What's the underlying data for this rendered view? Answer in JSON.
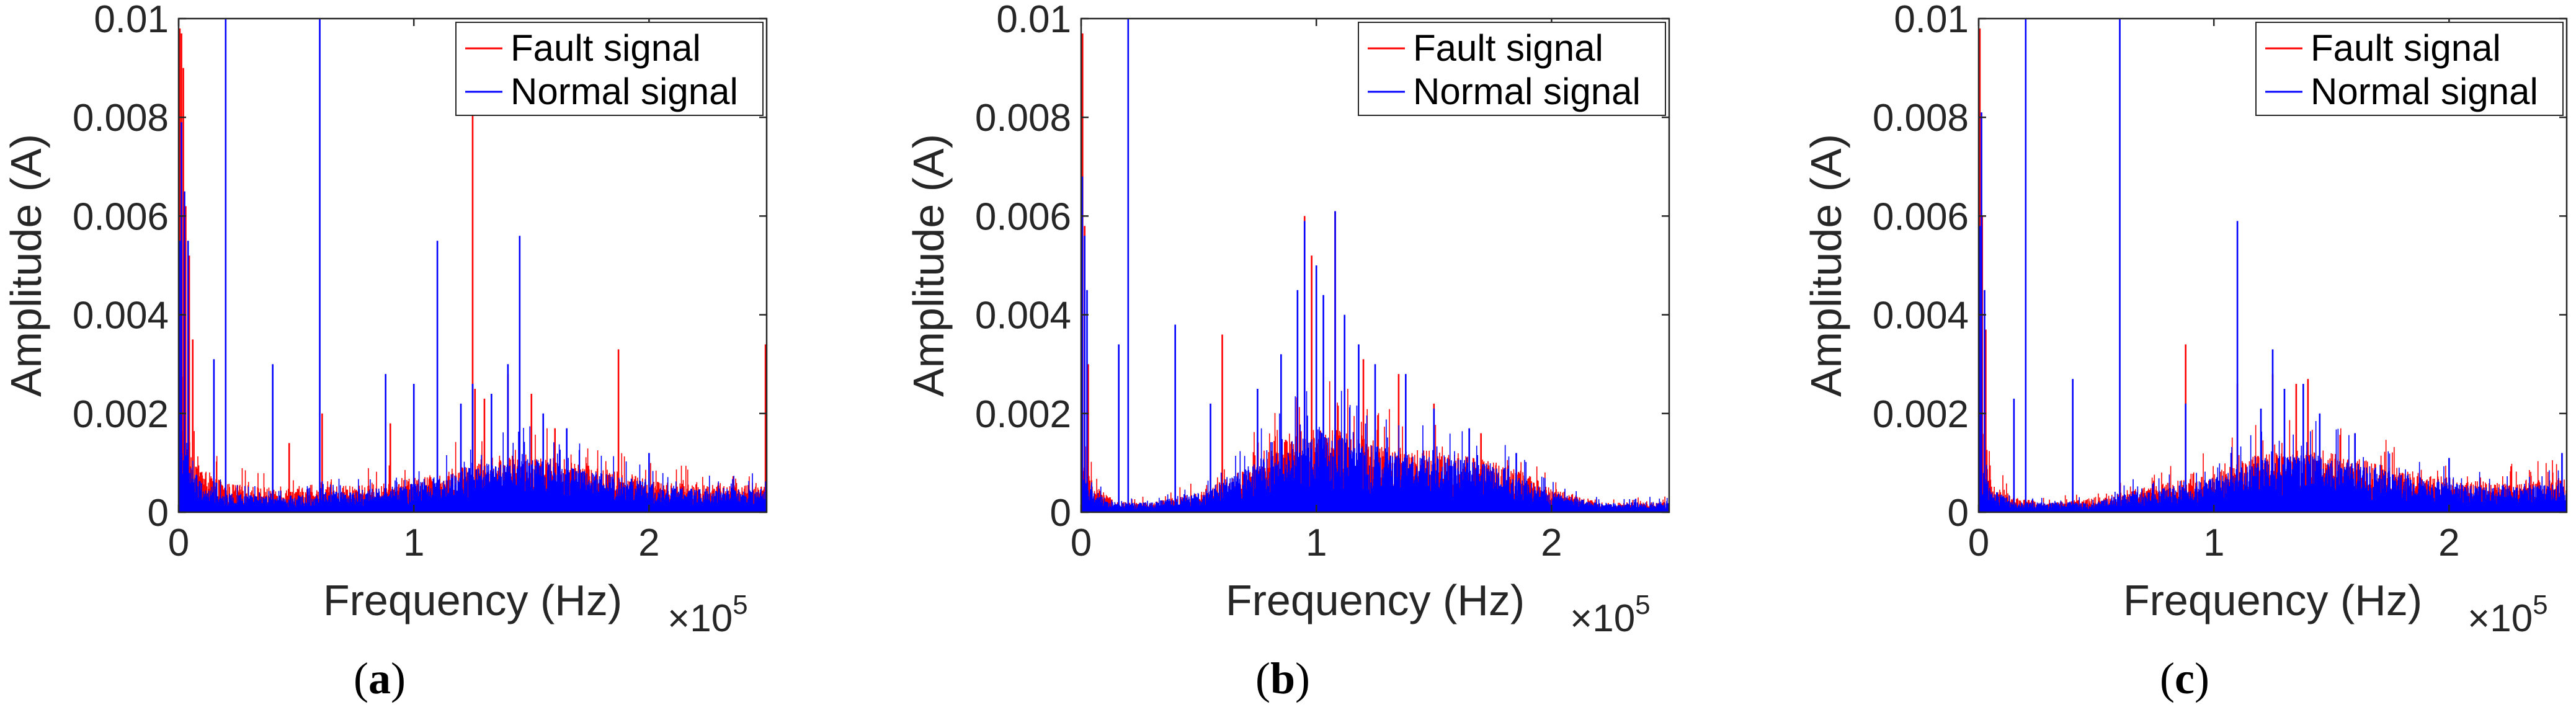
{
  "chart_data": [
    {
      "id": "a",
      "type": "line",
      "caption_letter": "a",
      "xlabel": "Frequency (Hz)",
      "ylabel": "Amplitude (A)",
      "x_exponent": "5",
      "x_tick_labels": [
        "0",
        "1",
        "2"
      ],
      "x_ticks": [
        0,
        100000,
        200000
      ],
      "y_tick_labels": [
        "0",
        "0.002",
        "0.004",
        "0.006",
        "0.008",
        "0.01"
      ],
      "y_ticks": [
        0,
        0.002,
        0.004,
        0.006,
        0.008,
        0.01
      ],
      "xlim": [
        0,
        250000
      ],
      "ylim": [
        0,
        0.01
      ],
      "grid": false,
      "legend_position": "top-right",
      "series": [
        {
          "name": "Fault signal",
          "color": "#ff0000",
          "noise_envelope": [
            [
              0,
              0.0022
            ],
            [
              3000,
              0.0018
            ],
            [
              10000,
              0.0009
            ],
            [
              20000,
              0.0006
            ],
            [
              40000,
              0.0005
            ],
            [
              60000,
              0.0005
            ],
            [
              90000,
              0.0006
            ],
            [
              110000,
              0.0008
            ],
            [
              130000,
              0.0011
            ],
            [
              150000,
              0.0012
            ],
            [
              170000,
              0.001
            ],
            [
              190000,
              0.0008
            ],
            [
              210000,
              0.0006
            ],
            [
              230000,
              0.0006
            ],
            [
              250000,
              0.0006
            ]
          ],
          "peaks": [
            [
              500,
              0.0098
            ],
            [
              1200,
              0.0097
            ],
            [
              2000,
              0.009
            ],
            [
              3000,
              0.0062
            ],
            [
              4500,
              0.0052
            ],
            [
              6000,
              0.0035
            ],
            [
              47000,
              0.0014
            ],
            [
              61000,
              0.002
            ],
            [
              90000,
              0.0018
            ],
            [
              125000,
              0.0084
            ],
            [
              126000,
              0.0025
            ],
            [
              130000,
              0.0023
            ],
            [
              140000,
              0.0028
            ],
            [
              150000,
              0.0024
            ],
            [
              160000,
              0.0017
            ],
            [
              187000,
              0.0033
            ],
            [
              249500,
              0.0034
            ]
          ]
        },
        {
          "name": "Normal signal",
          "color": "#0000ff",
          "noise_envelope": [
            [
              0,
              0.0015
            ],
            [
              3000,
              0.0012
            ],
            [
              10000,
              0.0006
            ],
            [
              20000,
              0.0004
            ],
            [
              40000,
              0.0003
            ],
            [
              60000,
              0.0004
            ],
            [
              90000,
              0.0005
            ],
            [
              110000,
              0.0007
            ],
            [
              130000,
              0.001
            ],
            [
              150000,
              0.0011
            ],
            [
              170000,
              0.0009
            ],
            [
              190000,
              0.0007
            ],
            [
              210000,
              0.0005
            ],
            [
              230000,
              0.0005
            ],
            [
              250000,
              0.0005
            ]
          ],
          "peaks": [
            [
              500,
              0.0055
            ],
            [
              1200,
              0.0079
            ],
            [
              2500,
              0.0065
            ],
            [
              4000,
              0.0055
            ],
            [
              15000,
              0.0031
            ],
            [
              20000,
              0.01
            ],
            [
              40000,
              0.003
            ],
            [
              60000,
              0.01
            ],
            [
              88000,
              0.0028
            ],
            [
              100000,
              0.0026
            ],
            [
              110000,
              0.0055
            ],
            [
              120000,
              0.0022
            ],
            [
              125000,
              0.0026
            ],
            [
              133000,
              0.0024
            ],
            [
              140000,
              0.003
            ],
            [
              145000,
              0.0056
            ],
            [
              155000,
              0.002
            ],
            [
              165000,
              0.0017
            ],
            [
              200000,
              0.0012
            ]
          ]
        }
      ]
    },
    {
      "id": "b",
      "type": "line",
      "caption_letter": "b",
      "xlabel": "Frequency (Hz)",
      "ylabel": "Amplitude (A)",
      "x_exponent": "5",
      "x_tick_labels": [
        "0",
        "1",
        "2"
      ],
      "x_ticks": [
        0,
        100000,
        200000
      ],
      "y_tick_labels": [
        "0",
        "0.002",
        "0.004",
        "0.006",
        "0.008",
        "0.01"
      ],
      "y_ticks": [
        0,
        0.002,
        0.004,
        0.006,
        0.008,
        0.01
      ],
      "xlim": [
        0,
        250000
      ],
      "ylim": [
        0,
        0.01
      ],
      "grid": false,
      "legend_position": "top-right",
      "series": [
        {
          "name": "Fault signal",
          "color": "#ff0000",
          "noise_envelope": [
            [
              0,
              0.0012
            ],
            [
              5000,
              0.0006
            ],
            [
              15000,
              0.0002
            ],
            [
              30000,
              0.0002
            ],
            [
              50000,
              0.0004
            ],
            [
              70000,
              0.0009
            ],
            [
              90000,
              0.0016
            ],
            [
              100000,
              0.0018
            ],
            [
              120000,
              0.0015
            ],
            [
              140000,
              0.0013
            ],
            [
              160000,
              0.0012
            ],
            [
              180000,
              0.001
            ],
            [
              200000,
              0.0005
            ],
            [
              220000,
              0.0002
            ],
            [
              250000,
              0.0002
            ]
          ],
          "peaks": [
            [
              600,
              0.0097
            ],
            [
              1500,
              0.0058
            ],
            [
              3000,
              0.003
            ],
            [
              60000,
              0.0036
            ],
            [
              95000,
              0.006
            ],
            [
              98000,
              0.0052
            ],
            [
              108000,
              0.0061
            ],
            [
              120000,
              0.0031
            ],
            [
              135000,
              0.0028
            ],
            [
              150000,
              0.0022
            ],
            [
              170000,
              0.0016
            ]
          ]
        },
        {
          "name": "Normal signal",
          "color": "#0000ff",
          "noise_envelope": [
            [
              0,
              0.0009
            ],
            [
              5000,
              0.0004
            ],
            [
              15000,
              0.0002
            ],
            [
              30000,
              0.0002
            ],
            [
              50000,
              0.0004
            ],
            [
              70000,
              0.0009
            ],
            [
              90000,
              0.0015
            ],
            [
              100000,
              0.0017
            ],
            [
              120000,
              0.0014
            ],
            [
              140000,
              0.0012
            ],
            [
              160000,
              0.0011
            ],
            [
              180000,
              0.0009
            ],
            [
              200000,
              0.0004
            ],
            [
              220000,
              0.0002
            ],
            [
              250000,
              0.0002
            ]
          ],
          "peaks": [
            [
              500,
              0.0068
            ],
            [
              1500,
              0.0056
            ],
            [
              2500,
              0.0045
            ],
            [
              16000,
              0.0034
            ],
            [
              20000,
              0.01
            ],
            [
              40000,
              0.0038
            ],
            [
              55000,
              0.0022
            ],
            [
              75000,
              0.0025
            ],
            [
              85000,
              0.0032
            ],
            [
              92000,
              0.0045
            ],
            [
              95000,
              0.0059
            ],
            [
              100000,
              0.005
            ],
            [
              103000,
              0.0044
            ],
            [
              108000,
              0.0061
            ],
            [
              112000,
              0.004
            ],
            [
              118000,
              0.0034
            ],
            [
              125000,
              0.003
            ],
            [
              138000,
              0.0028
            ],
            [
              150000,
              0.0021
            ],
            [
              165000,
              0.0017
            ],
            [
              185000,
              0.0012
            ]
          ]
        }
      ]
    },
    {
      "id": "c",
      "type": "line",
      "caption_letter": "c",
      "xlabel": "Frequency (Hz)",
      "ylabel": "Amplitude (A)",
      "x_exponent": "5",
      "x_tick_labels": [
        "0",
        "1",
        "2"
      ],
      "x_ticks": [
        0,
        100000,
        200000
      ],
      "y_tick_labels": [
        "0",
        "0.002",
        "0.004",
        "0.006",
        "0.008",
        "0.01"
      ],
      "y_ticks": [
        0,
        0.002,
        0.004,
        0.006,
        0.008,
        0.01
      ],
      "xlim": [
        0,
        250000
      ],
      "ylim": [
        0,
        0.01
      ],
      "grid": false,
      "legend_position": "top-right",
      "series": [
        {
          "name": "Fault signal",
          "color": "#ff0000",
          "noise_envelope": [
            [
              0,
              0.0015
            ],
            [
              5000,
              0.0007
            ],
            [
              15000,
              0.0003
            ],
            [
              30000,
              0.0002
            ],
            [
              50000,
              0.0003
            ],
            [
              60000,
              0.0004
            ],
            [
              80000,
              0.0006
            ],
            [
              100000,
              0.0008
            ],
            [
              120000,
              0.0012
            ],
            [
              140000,
              0.0013
            ],
            [
              160000,
              0.0011
            ],
            [
              180000,
              0.0009
            ],
            [
              200000,
              0.0007
            ],
            [
              220000,
              0.0006
            ],
            [
              250000,
              0.0007
            ]
          ],
          "peaks": [
            [
              500,
              0.0098
            ],
            [
              1500,
              0.006
            ],
            [
              3000,
              0.0037
            ],
            [
              88000,
              0.0034
            ],
            [
              110000,
              0.0026
            ],
            [
              125000,
              0.0028
            ],
            [
              135000,
              0.0026
            ],
            [
              140000,
              0.0027
            ],
            [
              160000,
              0.0016
            ]
          ]
        },
        {
          "name": "Normal signal",
          "color": "#0000ff",
          "noise_envelope": [
            [
              0,
              0.0012
            ],
            [
              5000,
              0.0005
            ],
            [
              15000,
              0.0002
            ],
            [
              30000,
              0.0002
            ],
            [
              50000,
              0.0002
            ],
            [
              60000,
              0.0004
            ],
            [
              80000,
              0.0005
            ],
            [
              100000,
              0.0007
            ],
            [
              120000,
              0.0011
            ],
            [
              140000,
              0.0012
            ],
            [
              160000,
              0.001
            ],
            [
              180000,
              0.0008
            ],
            [
              200000,
              0.0006
            ],
            [
              220000,
              0.0005
            ],
            [
              250000,
              0.0006
            ]
          ],
          "peaks": [
            [
              500,
              0.0058
            ],
            [
              1200,
              0.0081
            ],
            [
              2500,
              0.0045
            ],
            [
              15000,
              0.0023
            ],
            [
              20000,
              0.01
            ],
            [
              40000,
              0.0027
            ],
            [
              60000,
              0.01
            ],
            [
              88000,
              0.0022
            ],
            [
              110000,
              0.0059
            ],
            [
              120000,
              0.0021
            ],
            [
              125000,
              0.0033
            ],
            [
              130000,
              0.0025
            ],
            [
              138000,
              0.0026
            ],
            [
              145000,
              0.002
            ],
            [
              160000,
              0.0016
            ],
            [
              200000,
              0.0011
            ],
            [
              248000,
              0.0012
            ]
          ]
        }
      ]
    }
  ]
}
